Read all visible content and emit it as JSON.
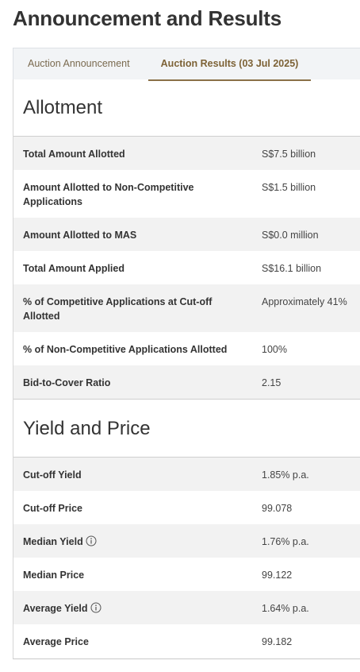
{
  "header": {
    "title": "Announcement and Results"
  },
  "tabs": [
    "Auction Announcement",
    "Auction Results (03 Jul 2025)"
  ],
  "sections": [
    {
      "heading": "Allotment",
      "rows": [
        [
          "Total Amount Allotted",
          "S$7.5 billion"
        ],
        [
          "Amount Allotted to Non-Competitive Applications",
          "S$1.5 billion"
        ],
        [
          "Amount Allotted to MAS",
          "S$0.0 million"
        ],
        [
          "Total Amount Applied",
          "S$16.1 billion"
        ],
        [
          "% of Competitive Applications at Cut-off Allotted",
          "Approximately 41%"
        ],
        [
          "% of Non-Competitive Applications Allotted",
          "100%"
        ],
        [
          "Bid-to-Cover Ratio",
          "2.15"
        ]
      ]
    },
    {
      "heading": "Yield and Price",
      "rows": [
        [
          "Cut-off Yield",
          "1.85% p.a."
        ],
        [
          "Cut-off Price",
          "99.078"
        ],
        [
          "Median Yield",
          "1.76% p.a."
        ],
        [
          "Median Price",
          "99.122"
        ],
        [
          "Average Yield",
          "1.64% p.a."
        ],
        [
          "Average Price",
          "99.182"
        ]
      ]
    }
  ]
}
